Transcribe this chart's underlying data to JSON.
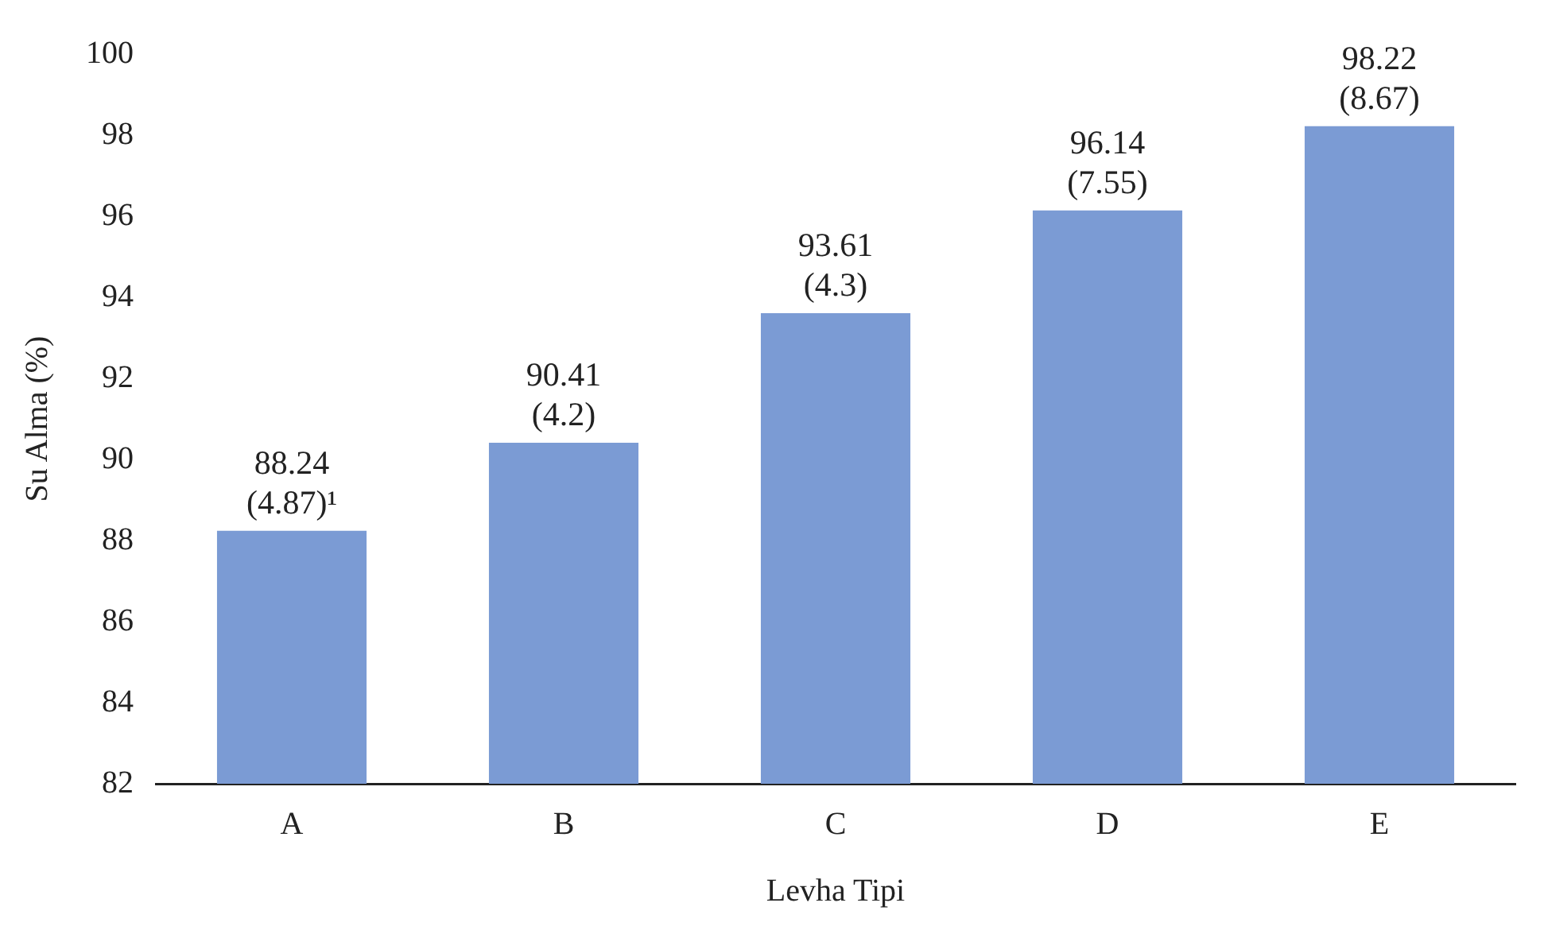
{
  "chart_data": {
    "type": "bar",
    "xlabel": "Levha Tipi",
    "ylabel": "Su Alma (%)",
    "categories": [
      "A",
      "B",
      "C",
      "D",
      "E"
    ],
    "values": [
      88.24,
      90.41,
      93.61,
      96.14,
      98.22
    ],
    "value_labels": [
      "88.24\n(4.87)¹",
      "90.41\n(4.2)",
      "93.61\n(4.3)",
      "96.14\n(7.55)",
      "98.22\n(8.67)"
    ],
    "color": "#7b9bd4",
    "ylim": [
      82,
      100
    ],
    "yticks": [
      82,
      84,
      86,
      88,
      90,
      92,
      94,
      96,
      98,
      100
    ],
    "grid": false,
    "legend": false
  }
}
